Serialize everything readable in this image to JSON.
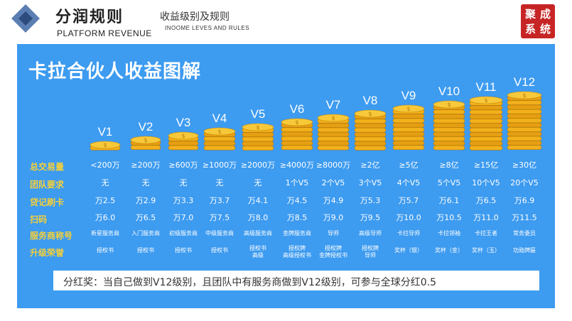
{
  "header": {
    "title_cn": "分润规则",
    "title_en": "PLATFORM REVENUE",
    "subtitle_cn": "收益级别及规则",
    "subtitle_en": "INOOME LEVES AND RULES",
    "seal_chars": [
      "聚",
      "成",
      "系",
      "统"
    ]
  },
  "colors": {
    "panel": "#3d9bf0",
    "row_label": "#f5d03a",
    "seal": "#c72525",
    "coin": "#f2b01a"
  },
  "panel_title": "卡拉合伙人收益图解",
  "levels": [
    "V1",
    "V2",
    "V3",
    "V4",
    "V5",
    "V6",
    "V7",
    "V8",
    "V9",
    "V10",
    "V11",
    "V12"
  ],
  "row_labels": [
    "总交易量",
    "团队要求",
    "贷记刷卡",
    "扫码",
    "服务商称号",
    "升级荣誉"
  ],
  "rows": {
    "volume": [
      "<200万",
      "≥200万",
      "≥600万",
      "≥1000万",
      "≥2000万",
      "≥4000万",
      "≥8000万",
      "≥2亿",
      "≥5亿",
      "≥8亿",
      "≥15亿",
      "≥30亿"
    ],
    "team": [
      "无",
      "无",
      "无",
      "无",
      "无",
      "1个V5",
      "2个V5",
      "3个V5",
      "4个V5",
      "5个V5",
      "10个V5",
      "20个V5"
    ],
    "credit": [
      "万2.5",
      "万2.9",
      "万3.3",
      "万3.7",
      "万4.1",
      "万4.5",
      "万4.9",
      "万5.3",
      "万5.7",
      "万6.1",
      "万6.5",
      "万6.9"
    ],
    "scan": [
      "万6.0",
      "万6.5",
      "万7.0",
      "万7.5",
      "万8.0",
      "万8.5",
      "万9.0",
      "万9.5",
      "万10.0",
      "万10.5",
      "万11.0",
      "万11.5"
    ],
    "title": [
      "新星服务商",
      "入门服务商",
      "初级服务商",
      "中级服务商",
      "高级服务商",
      "金牌服务商",
      "导师",
      "高级导师",
      "卡拉导师",
      "卡拉领袖",
      "卡拉王者",
      "常务委员"
    ],
    "honor": [
      "授权书",
      "授权书",
      "授权书",
      "授权书",
      "授权书\n高级",
      "授权牌\n高级授权书",
      "授权牌\n金牌授权书",
      "授权牌\n导师",
      "奖杯（银）",
      "奖杯（金）",
      "奖杯（玉）",
      "功勋牌匾"
    ]
  },
  "coin_counts": [
    1,
    2,
    3,
    4,
    5,
    6,
    7,
    8,
    9,
    10,
    11,
    12
  ],
  "bonus_text": "分红奖：当自己做到V12级别，且团队中有服务商做到V12级别，可参与全球分红0.5"
}
